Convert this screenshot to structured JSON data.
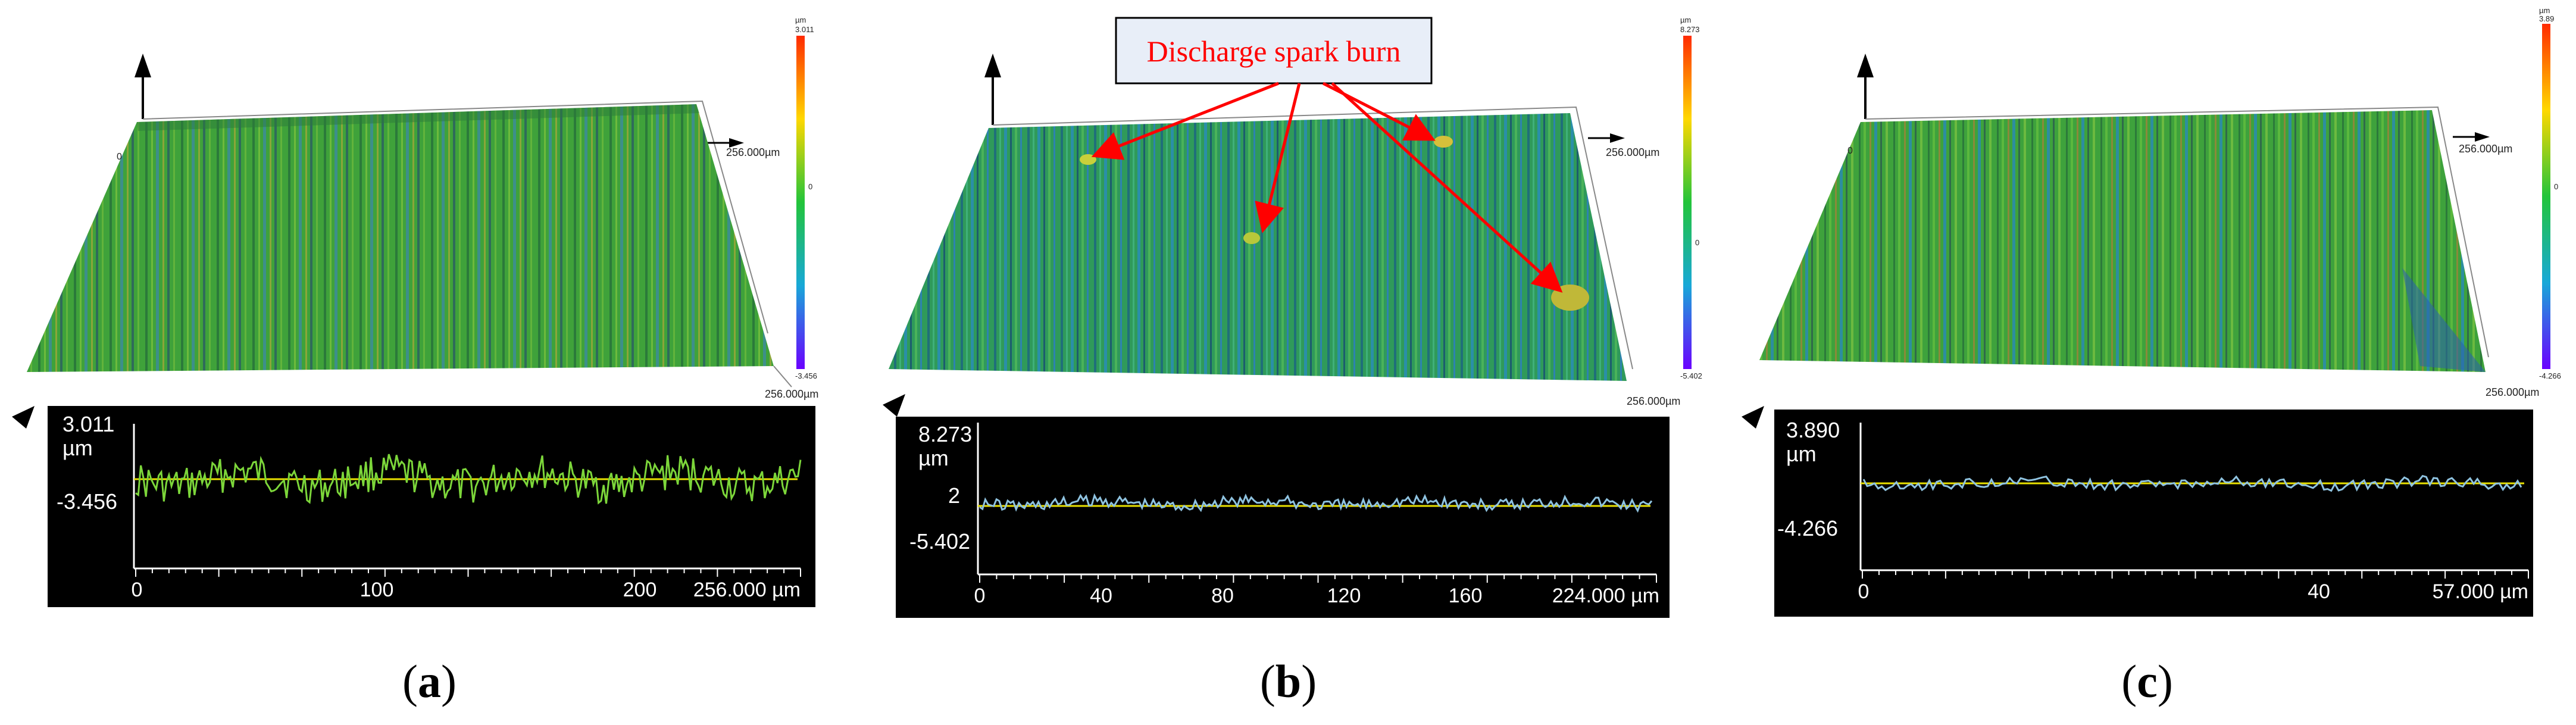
{
  "panels": [
    {
      "id": "a",
      "caption_letter": "a",
      "surface": {
        "colorbar": {
          "unit": "µm",
          "max": "3.011",
          "mid": "0",
          "min": "-3.456"
        },
        "corner_left": "0",
        "x_extent": "256.000µm",
        "y_extent": "256.000µm"
      },
      "profile": {
        "y_max": "3.011",
        "y_unit": "µm",
        "y_mid": "",
        "y_min": "-3.456",
        "x_ticks": [
          "0",
          "100",
          "200"
        ],
        "x_end": "256.000 µm",
        "color": "#7cd63a"
      }
    },
    {
      "id": "b",
      "caption_letter": "b",
      "annotation": "Discharge spark burn",
      "surface": {
        "colorbar": {
          "unit": "µm",
          "max": "8.273",
          "mid": "0",
          "min": "-5.402"
        },
        "corner_left": "",
        "x_extent": "256.000µm",
        "y_extent": "256.000µm"
      },
      "profile": {
        "y_max": "8.273",
        "y_unit": "µm",
        "y_mid": "2",
        "y_min": "-5.402",
        "x_ticks": [
          "0",
          "40",
          "80",
          "120",
          "160"
        ],
        "x_end": "224.000 µm",
        "color": "#8fc3e0"
      }
    },
    {
      "id": "c",
      "caption_letter": "c",
      "surface": {
        "colorbar": {
          "unit": "µm",
          "max": "3.89",
          "mid": "0",
          "min": "-4.266"
        },
        "corner_left": "0",
        "x_extent": "256.000µm",
        "y_extent": "256.000µm"
      },
      "profile": {
        "y_max": "3.890",
        "y_unit": "µm",
        "y_mid": "",
        "y_min": "-4.266",
        "x_ticks": [
          "0",
          "40"
        ],
        "x_end": "57.000 µm",
        "color": "#8fc3e0"
      }
    }
  ],
  "colors": {
    "profile_bg": "#000000",
    "baseline": "#e8e000",
    "annotation_text": "#ff0000",
    "annotation_box": "#e8eef8",
    "arrow": "#ff0000"
  }
}
